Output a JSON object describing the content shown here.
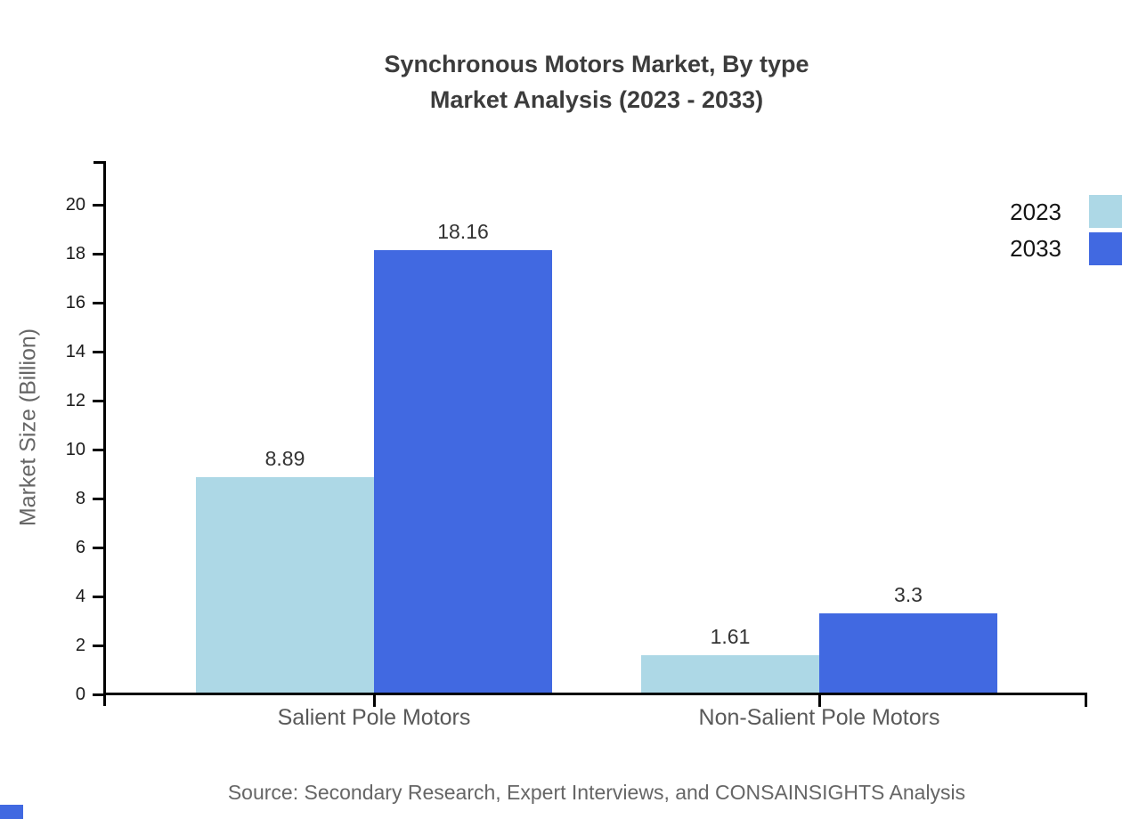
{
  "title": {
    "line1": "Synchronous Motors Market, By type",
    "line2": "Market Analysis (2023 - 2033)"
  },
  "y_axis": {
    "label": "Market Size (Billion)",
    "ticks": [
      0,
      2,
      4,
      6,
      8,
      10,
      12,
      14,
      16,
      18,
      20
    ]
  },
  "legend": [
    {
      "label": "2023",
      "color": "#ADD8E6"
    },
    {
      "label": "2033",
      "color": "#4169E1"
    }
  ],
  "source": "Source: Secondary Research, Expert Interviews, and CONSAINSIGHTS Analysis",
  "brand": {
    "corner_mark_color": "#4169E1"
  },
  "chart_data": {
    "type": "bar",
    "title": "Synchronous Motors Market, By type — Market Analysis (2023 - 2033)",
    "categories": [
      "Salient Pole Motors",
      "Non-Salient Pole Motors"
    ],
    "series": [
      {
        "name": "2023",
        "color": "#ADD8E6",
        "values": [
          8.89,
          1.61
        ]
      },
      {
        "name": "2033",
        "color": "#4169E1",
        "values": [
          18.16,
          3.3
        ]
      }
    ],
    "xlabel": "",
    "ylabel": "Market Size (Billion)",
    "ylim": [
      0,
      20
    ],
    "ytick_step": 2,
    "grid": false,
    "legend_position": "top-right",
    "value_labels": true
  }
}
